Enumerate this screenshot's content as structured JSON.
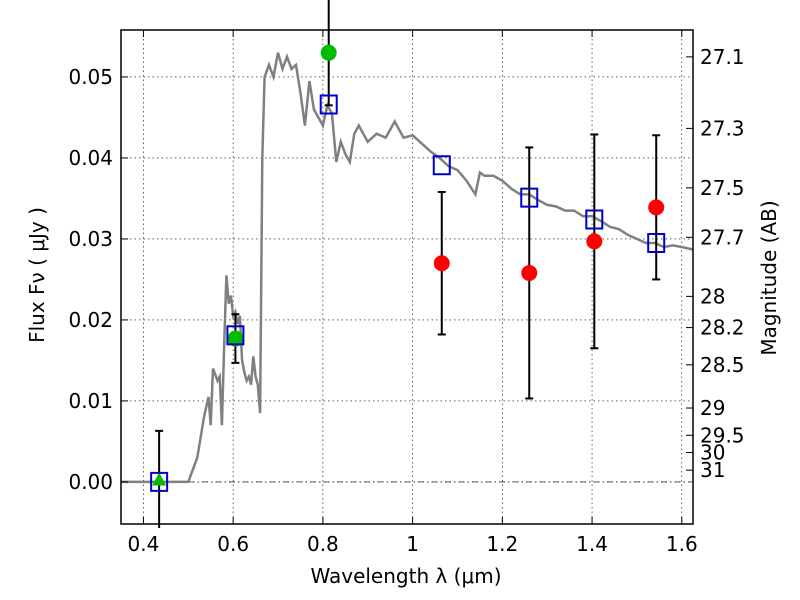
{
  "chart_data": {
    "type": "scatter",
    "xlabel": "Wavelength  λ (μm)",
    "ylabel": "Flux  Fν  ( μJy )",
    "y2label": "Magnitude (AB)",
    "xlim": [
      0.35,
      1.625
    ],
    "ylim": [
      -0.0052,
      0.0558
    ],
    "x_ticks": [
      {
        "value": 0.4,
        "label": "0.4"
      },
      {
        "value": 0.6,
        "label": "0.6"
      },
      {
        "value": 0.8,
        "label": "0.8"
      },
      {
        "value": 1.0,
        "label": "1"
      },
      {
        "value": 1.2,
        "label": "1.2"
      },
      {
        "value": 1.4,
        "label": "1.4"
      },
      {
        "value": 1.6,
        "label": "1.6"
      }
    ],
    "y_ticks": [
      {
        "value": 0.0,
        "label": "0.00"
      },
      {
        "value": 0.01,
        "label": "0.01"
      },
      {
        "value": 0.02,
        "label": "0.02"
      },
      {
        "value": 0.03,
        "label": "0.03"
      },
      {
        "value": 0.04,
        "label": "0.04"
      },
      {
        "value": 0.05,
        "label": "0.05"
      }
    ],
    "mag_ticks": [
      "27.1",
      "27.3",
      "27.5",
      "27.7",
      "28",
      "28.2",
      "28.5",
      "29",
      "29.5",
      "30",
      "31"
    ],
    "grid": true,
    "zero_line": true,
    "colors": {
      "model": "#808080",
      "hst": "#00bb00",
      "ir": "#ff0000",
      "model_points": "#0000cc",
      "errorbar": "#000000"
    },
    "model_spectrum": {
      "x": [
        0.35,
        0.49,
        0.5,
        0.52,
        0.535,
        0.545,
        0.55,
        0.555,
        0.565,
        0.57,
        0.575,
        0.58,
        0.585,
        0.59,
        0.595,
        0.6,
        0.605,
        0.61,
        0.615,
        0.62,
        0.625,
        0.63,
        0.635,
        0.64,
        0.645,
        0.65,
        0.655,
        0.66,
        0.665,
        0.67,
        0.68,
        0.69,
        0.7,
        0.71,
        0.72,
        0.73,
        0.74,
        0.75,
        0.76,
        0.77,
        0.78,
        0.79,
        0.8,
        0.81,
        0.82,
        0.83,
        0.84,
        0.85,
        0.86,
        0.87,
        0.88,
        0.9,
        0.92,
        0.94,
        0.95,
        0.96,
        0.97,
        0.98,
        1.0,
        1.02,
        1.04,
        1.06,
        1.08,
        1.1,
        1.12,
        1.14,
        1.15,
        1.16,
        1.18,
        1.2,
        1.22,
        1.24,
        1.26,
        1.28,
        1.3,
        1.32,
        1.34,
        1.36,
        1.38,
        1.4,
        1.42,
        1.44,
        1.46,
        1.48,
        1.5,
        1.52,
        1.54,
        1.56,
        1.58,
        1.6,
        1.625
      ],
      "y": [
        0.0,
        0.0,
        0.0,
        0.003,
        0.008,
        0.0105,
        0.007,
        0.014,
        0.0125,
        0.013,
        0.007,
        0.017,
        0.0255,
        0.022,
        0.023,
        0.0205,
        0.021,
        0.0195,
        0.0205,
        0.015,
        0.0135,
        0.0125,
        0.013,
        0.012,
        0.0155,
        0.013,
        0.012,
        0.0085,
        0.04,
        0.05,
        0.0515,
        0.05,
        0.053,
        0.051,
        0.0525,
        0.051,
        0.0515,
        0.048,
        0.044,
        0.0495,
        0.046,
        0.045,
        0.044,
        0.0465,
        0.0455,
        0.0395,
        0.042,
        0.0405,
        0.0395,
        0.043,
        0.044,
        0.042,
        0.043,
        0.0425,
        0.0435,
        0.0445,
        0.0435,
        0.0425,
        0.0428,
        0.0418,
        0.0408,
        0.04,
        0.039,
        0.0385,
        0.0372,
        0.0355,
        0.0382,
        0.0378,
        0.0378,
        0.0372,
        0.0362,
        0.0355,
        0.0355,
        0.0348,
        0.0342,
        0.034,
        0.0335,
        0.0335,
        0.0328,
        0.0328,
        0.0322,
        0.0315,
        0.0312,
        0.0305,
        0.03,
        0.0295,
        0.0295,
        0.029,
        0.0292,
        0.029,
        0.0287
      ]
    },
    "hst_points": [
      {
        "x": 0.605,
        "y": 0.0177,
        "err": 0.003
      },
      {
        "x": 0.813,
        "y": 0.053,
        "err": 0.0065
      }
    ],
    "hst_upper_triangle": {
      "x": 0.435,
      "y": 0.0003,
      "err": 0.006
    },
    "ir_points": [
      {
        "x": 1.065,
        "y": 0.027,
        "err": 0.0088
      },
      {
        "x": 1.26,
        "y": 0.0258,
        "err": 0.0155
      },
      {
        "x": 1.405,
        "y": 0.0297,
        "err": 0.0132
      },
      {
        "x": 1.543,
        "y": 0.0339,
        "err": 0.0089
      }
    ],
    "model_points": [
      {
        "x": 0.435,
        "y": 0.0
      },
      {
        "x": 0.605,
        "y": 0.0181
      },
      {
        "x": 0.813,
        "y": 0.0466
      },
      {
        "x": 1.065,
        "y": 0.0391
      },
      {
        "x": 1.26,
        "y": 0.0351
      },
      {
        "x": 1.405,
        "y": 0.0324
      },
      {
        "x": 1.543,
        "y": 0.0295
      }
    ]
  }
}
